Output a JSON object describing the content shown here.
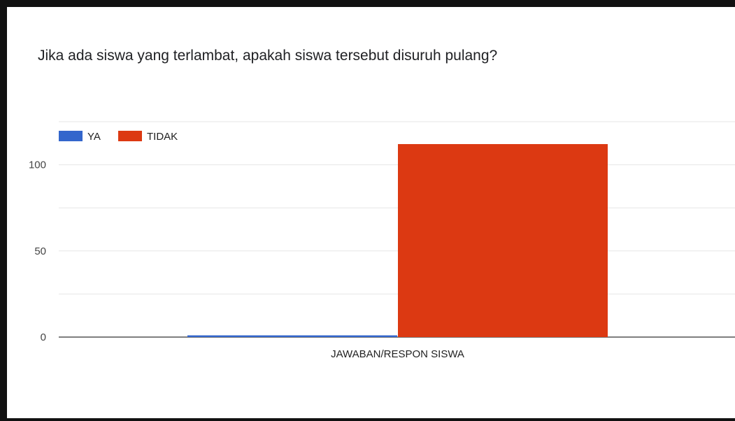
{
  "chart_data": {
    "type": "bar",
    "title": "Jika ada siswa yang terlambat, apakah siswa tersebut disuruh pulang?",
    "categories": [
      "JAWABAN/RESPON SISWA"
    ],
    "series": [
      {
        "name": "YA",
        "values": [
          1
        ],
        "color": "#3366cc"
      },
      {
        "name": "TIDAK",
        "values": [
          112
        ],
        "color": "#dc3912"
      }
    ],
    "ylim": [
      0,
      125
    ],
    "yticks": [
      0,
      50,
      100
    ],
    "grid": true,
    "legend": "top-left"
  }
}
